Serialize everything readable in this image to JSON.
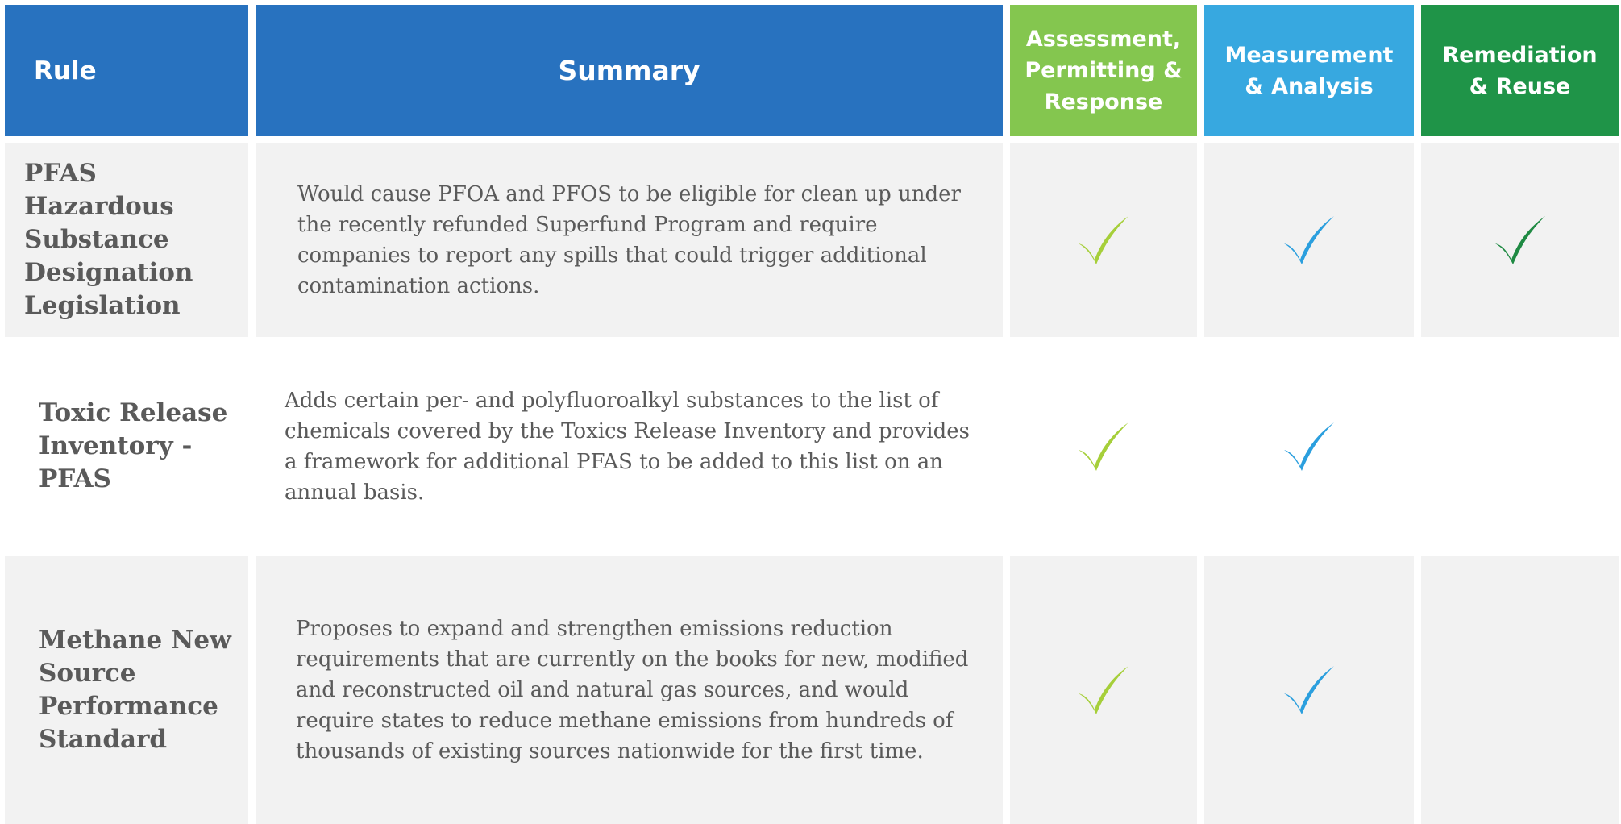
{
  "header": {
    "rule": "Rule",
    "summary": "Summary",
    "categories": [
      "Assessment, Permitting & Response",
      "Measurement & Analysis",
      "Remediation & Reuse"
    ]
  },
  "rows": [
    {
      "rule": "PFAS Hazardous Substance Designation Legislation",
      "summary": "Would cause PFOA and PFOS to be eligible for clean up under the recently refunded Superfund Program and require companies to report any spills that could trigger additional contamination actions.",
      "checks": [
        true,
        true,
        true
      ],
      "shaded": true
    },
    {
      "rule": "Toxic Release Inventory - PFAS",
      "summary": "Adds certain per- and polyfluoroalkyl substances to the list of chemicals covered by the Toxics Release Inventory and provides a framework for additional PFAS to be added to this list on an annual basis.",
      "checks": [
        true,
        true,
        false
      ],
      "shaded": false
    },
    {
      "rule": "Methane New Source Performance Standard",
      "summary": "Proposes to expand and strengthen emissions reduction requirements that are currently on the books for new, modified and reconstructed oil and natural gas sources, and would require states to reduce methane emissions from hundreds of thousands of existing sources nationwide for the first time.",
      "checks": [
        true,
        true,
        false
      ],
      "shaded": true
    }
  ]
}
